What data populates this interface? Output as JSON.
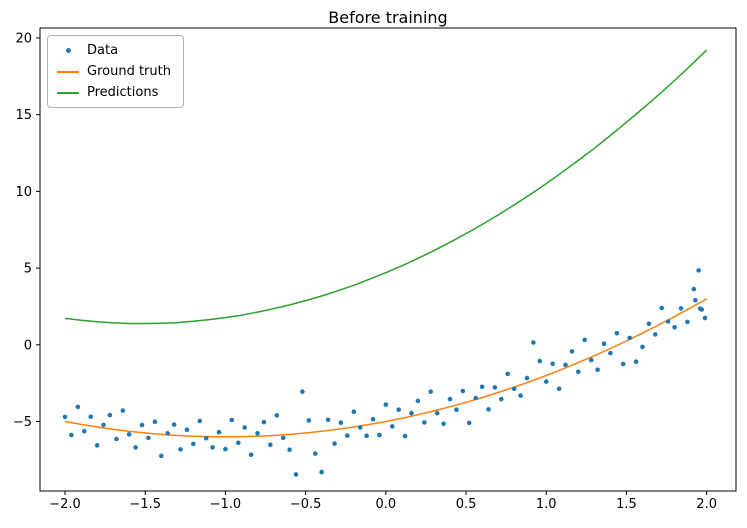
{
  "window": {
    "title": "Before training"
  },
  "legend": {
    "items": [
      {
        "label": "Data",
        "marker": "dot",
        "color": "#1f77b4"
      },
      {
        "label": "Ground truth",
        "marker": "line",
        "color": "#ff7f0e"
      },
      {
        "label": "Predictions",
        "marker": "line",
        "color": "#2ca02c"
      }
    ]
  },
  "chart_data": {
    "type": "scatter+line",
    "title": "Before training",
    "xlabel": "",
    "ylabel": "",
    "grid": false,
    "legend_position": "upper left",
    "xlim": [
      -2.156,
      2.183
    ],
    "ylim": [
      -9.53,
      20.65
    ],
    "x_ticks": [
      -2.0,
      -1.5,
      -1.0,
      -0.5,
      0.0,
      0.5,
      1.0,
      1.5,
      2.0
    ],
    "x_tick_labels": [
      "−2.0",
      "−1.5",
      "−1.0",
      "−0.5",
      "0.0",
      "0.5",
      "1.0",
      "1.5",
      "2.0"
    ],
    "y_ticks": [
      -5,
      0,
      5,
      10,
      15,
      20
    ],
    "y_tick_labels": [
      "−5",
      "0",
      "5",
      "10",
      "15",
      "20"
    ],
    "frame_color": "#000000",
    "scatter": {
      "name": "Data",
      "color": "#1f77b4",
      "marker_radius": 2.3,
      "x": [
        -2,
        -1.96,
        -1.92,
        -1.88,
        -1.84,
        -1.8,
        -1.76,
        -1.72,
        -1.68,
        -1.64,
        -1.6,
        -1.56,
        -1.52,
        -1.48,
        -1.44,
        -1.4,
        -1.36,
        -1.32,
        -1.28,
        -1.24,
        -1.2,
        -1.16,
        -1.12,
        -1.08,
        -1.04,
        -1,
        -0.96,
        -0.92,
        -0.88,
        -0.84,
        -0.8,
        -0.76,
        -0.72,
        -0.68,
        -0.64,
        -0.6,
        -0.56,
        -0.52,
        -0.48,
        -0.44,
        -0.4,
        -0.36,
        -0.32,
        -0.28,
        -0.24,
        -0.2,
        -0.16,
        -0.12,
        -0.08,
        -0.04,
        0,
        0.04,
        0.08,
        0.12,
        0.16,
        0.2,
        0.24,
        0.28,
        0.32,
        0.36,
        0.4,
        0.44,
        0.48,
        0.52,
        0.56,
        0.6,
        0.64,
        0.68,
        0.72,
        0.76,
        0.8,
        0.84,
        0.88,
        0.92,
        0.96,
        1,
        1.04,
        1.08,
        1.12,
        1.16,
        1.2,
        1.24,
        1.28,
        1.32,
        1.36,
        1.4,
        1.44,
        1.48,
        1.52,
        1.56,
        1.6,
        1.64,
        1.68,
        1.72,
        1.76,
        1.8,
        1.84,
        1.88,
        1.92,
        1.96,
        1.93,
        1.95,
        1.97,
        1.99
      ],
      "y": [
        -4.7,
        -5.88,
        -4.05,
        -5.63,
        -4.69,
        -6.56,
        -5.22,
        -4.58,
        -6.14,
        -4.29,
        -5.84,
        -6.69,
        -5.23,
        -6.07,
        -5.01,
        -7.24,
        -5.77,
        -5.2,
        -6.82,
        -5.54,
        -6.46,
        -4.97,
        -6.09,
        -6.69,
        -5.7,
        -6.8,
        -4.9,
        -6.39,
        -5.39,
        -7.17,
        -5.76,
        -5.04,
        -6.52,
        -4.6,
        -6.07,
        -6.84,
        -8.45,
        -3.05,
        -4.93,
        -7.09,
        -8.3,
        -4.89,
        -6.44,
        -5.08,
        -5.92,
        -4.36,
        -5.39,
        -5.93,
        -4.85,
        -5.88,
        -3.9,
        -5.32,
        -4.23,
        -5.95,
        -4.45,
        -3.66,
        -5.06,
        -3.06,
        -4.46,
        -5.15,
        -3.54,
        -4.23,
        -3.01,
        -5.09,
        -3.47,
        -2.74,
        -4.21,
        -2.78,
        -3.54,
        -1.9,
        -2.86,
        -3.31,
        -2.17,
        0.15,
        -1.06,
        -2.4,
        -1.24,
        -2.87,
        -1.31,
        -0.43,
        -1.76,
        0.32,
        -1.0,
        -1.62,
        0.07,
        -0.54,
        0.75,
        -1.25,
        0.45,
        -1.1,
        -0.14,
        1.37,
        0.68,
        2.4,
        1.52,
        1.14,
        2.37,
        1.49,
        3.63,
        2.36,
        2.9,
        4.85,
        2.3,
        1.75
      ]
    },
    "lines": [
      {
        "name": "Ground truth",
        "color": "#ff7f0e",
        "width": 1.5,
        "x": [
          -2,
          -1.9,
          -1.8,
          -1.7,
          -1.6,
          -1.5,
          -1.4,
          -1.3,
          -1.2,
          -1.1,
          -1,
          -0.9,
          -0.8,
          -0.7,
          -0.6,
          -0.5,
          -0.4,
          -0.3,
          -0.2,
          -0.1,
          0,
          0.1,
          0.2,
          0.3,
          0.4,
          0.5,
          0.6,
          0.7,
          0.8,
          0.9,
          1,
          1.1,
          1.2,
          1.3,
          1.4,
          1.5,
          1.6,
          1.7,
          1.8,
          1.9,
          2
        ],
        "y": [
          -5,
          -5.19,
          -5.36,
          -5.51,
          -5.64,
          -5.75,
          -5.84,
          -5.91,
          -5.96,
          -5.99,
          -6,
          -5.99,
          -5.96,
          -5.91,
          -5.84,
          -5.75,
          -5.64,
          -5.51,
          -5.36,
          -5.19,
          -5,
          -4.79,
          -4.56,
          -4.31,
          -4.04,
          -3.75,
          -3.44,
          -3.11,
          -2.76,
          -2.39,
          -2,
          -1.59,
          -1.16,
          -0.71,
          -0.24,
          0.25,
          0.76,
          1.29,
          1.84,
          2.41,
          3
        ]
      },
      {
        "name": "Predictions",
        "color": "#2ca02c",
        "width": 1.5,
        "x": [
          -2,
          -1.9,
          -1.8,
          -1.7,
          -1.6,
          -1.5,
          -1.4,
          -1.3,
          -1.2,
          -1.1,
          -1,
          -0.9,
          -0.8,
          -0.7,
          -0.6,
          -0.5,
          -0.4,
          -0.3,
          -0.2,
          -0.1,
          0,
          0.1,
          0.2,
          0.3,
          0.4,
          0.5,
          0.6,
          0.7,
          0.8,
          0.9,
          1,
          1.1,
          1.2,
          1.3,
          1.4,
          1.5,
          1.6,
          1.7,
          1.8,
          1.9,
          2
        ],
        "y": [
          1.72,
          1.6,
          1.5,
          1.43,
          1.39,
          1.39,
          1.4,
          1.45,
          1.53,
          1.64,
          1.77,
          1.93,
          2.13,
          2.35,
          2.6,
          2.88,
          3.18,
          3.52,
          3.88,
          4.28,
          4.7,
          5.15,
          5.63,
          6.14,
          6.68,
          7.25,
          7.84,
          8.46,
          9.12,
          9.8,
          10.51,
          11.25,
          12.02,
          12.81,
          13.64,
          14.5,
          15.38,
          16.29,
          17.23,
          18.2,
          19.21
        ]
      }
    ]
  }
}
